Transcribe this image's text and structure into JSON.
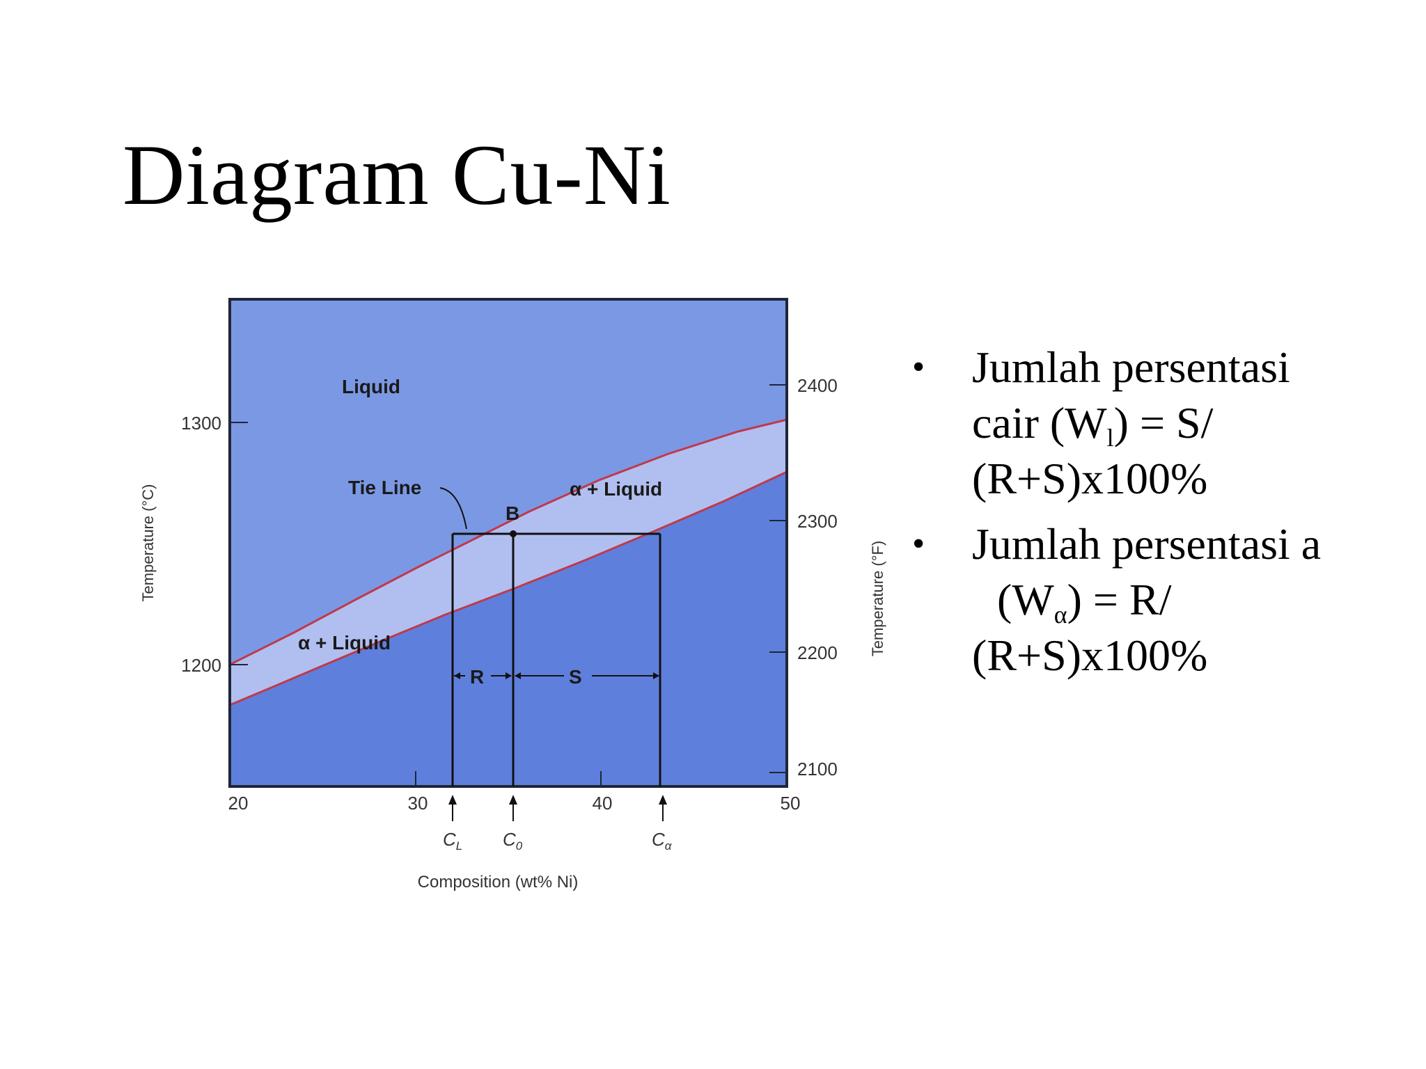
{
  "slide": {
    "title": "Diagram Cu-Ni"
  },
  "diagram": {
    "regions": {
      "liquid": "Liquid",
      "alpha_liquid_upper": "α + Liquid",
      "alpha_liquid_lower": "α + Liquid"
    },
    "tie_line_label": "Tie Line",
    "point_label": "B",
    "segment_r": "R",
    "segment_s": "S",
    "left_axis_title": "Temperature (°C)",
    "right_axis_title": "Temperature (°F)",
    "bottom_axis_title": "Composition (wt% Ni)",
    "left_ticks": [
      "1300",
      "1200"
    ],
    "right_ticks": [
      "2400",
      "2300",
      "2200",
      "2100"
    ],
    "bottom_ticks": [
      "20",
      "30",
      "40",
      "50"
    ],
    "markers": {
      "cl": "C",
      "cl_sub": "L",
      "c0": "C",
      "c0_sub": "0",
      "ca": "C",
      "ca_sub": "α"
    },
    "colors": {
      "liquid": "#7b98e4",
      "two_phase": "#b1bff0",
      "solid": "#5f7fdc",
      "phase_line": "#c0394b",
      "axis": "#1e2636"
    }
  },
  "bullets": [
    {
      "dot": "•",
      "line1": "Jumlah persentasi",
      "line2_pre": "cair (W",
      "line2_sub": "l",
      "line2_post": ") = S/",
      "line3": "(R+S)x100%"
    },
    {
      "dot": "•",
      "line1": "Jumlah persentasi a",
      "line2_pre": "(W",
      "line2_sub": "α",
      "line2_post": ") = R/",
      "line3": "(R+S)x100%"
    }
  ]
}
